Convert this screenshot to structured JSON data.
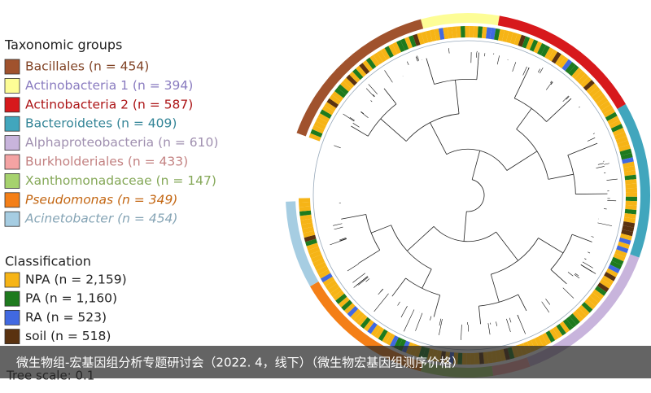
{
  "legend_taxonomic": {
    "title": "Taxonomic groups",
    "items": [
      {
        "label": "Bacillales (n = 454)",
        "color": "#a0522d"
      },
      {
        "label": "Actinobacteria 1 (n = 394)",
        "color": "#fdfd96"
      },
      {
        "label": "Actinobacteria 2 (n = 587)",
        "color": "#d7191c"
      },
      {
        "label": "Bacteroidetes (n = 409)",
        "color": "#41a6bd"
      },
      {
        "label": "Alphaproteobacteria (n = 610)",
        "color": "#c8b4dc"
      },
      {
        "label": "Burkholderiales (n = 433)",
        "color": "#f4a3a3"
      },
      {
        "label": "Xanthomonadaceae (n = 147)",
        "color": "#a6d26e"
      },
      {
        "label": "Pseudomonas (n = 349)",
        "color": "#f47f17"
      },
      {
        "label": "Acinetobacter (n = 454)",
        "color": "#a6cde2"
      }
    ]
  },
  "legend_classification": {
    "title": "Classification",
    "items": [
      {
        "label": "NPA (n = 2,159)",
        "color": "#f6b416"
      },
      {
        "label": "PA (n = 1,160)",
        "color": "#1e7a1e"
      },
      {
        "label": "RA (n = 523)",
        "color": "#4169e1"
      },
      {
        "label": "soil (n = 518)",
        "color": "#5a3210"
      }
    ]
  },
  "tree_scale": "Tree scale: 0.1",
  "caption": "微生物组-宏基因组分析专题研讨会（2022. 4，线下）（微生物宏基因组测序价格）"
}
